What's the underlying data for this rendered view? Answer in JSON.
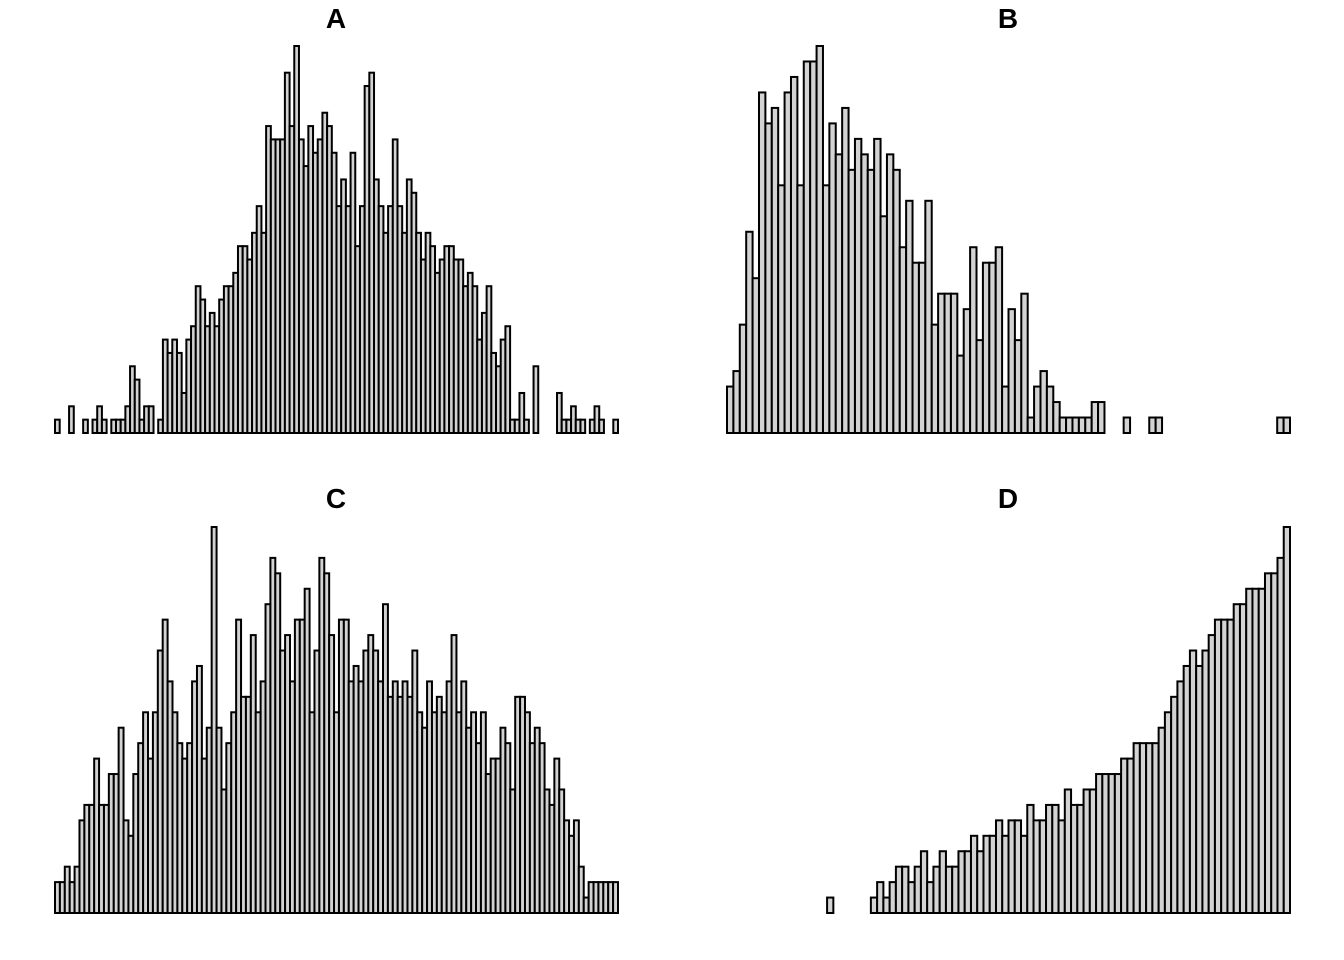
{
  "colors": {
    "bar_fill": "#d3d3d3",
    "bar_stroke": "#000000",
    "background": "#ffffff"
  },
  "chart_data": [
    {
      "type": "bar",
      "panel": "A",
      "title": "A",
      "xlabel": "",
      "ylabel": "",
      "axes": "none",
      "grid": false,
      "ylim": [
        0,
        29
      ],
      "values": [
        1,
        0,
        0,
        2,
        0,
        0,
        1,
        0,
        1,
        2,
        1,
        0,
        1,
        1,
        1,
        2,
        5,
        4,
        1,
        2,
        2,
        0,
        1,
        7,
        6,
        7,
        6,
        3,
        7,
        8,
        11,
        10,
        8,
        9,
        8,
        10,
        11,
        11,
        12,
        14,
        14,
        13,
        15,
        17,
        15,
        23,
        22,
        22,
        22,
        27,
        23,
        29,
        22,
        20,
        23,
        21,
        22,
        24,
        23,
        21,
        17,
        19,
        17,
        21,
        14,
        17,
        26,
        27,
        19,
        17,
        15,
        17,
        22,
        17,
        15,
        19,
        18,
        15,
        13,
        15,
        14,
        12,
        13,
        14,
        14,
        13,
        13,
        11,
        12,
        11,
        7,
        9,
        11,
        6,
        5,
        7,
        8,
        1,
        1,
        3,
        1,
        0,
        5,
        0,
        0,
        0,
        0,
        3,
        1,
        1,
        2,
        1,
        1,
        0,
        1,
        2,
        1,
        0,
        0,
        1
      ]
    },
    {
      "type": "bar",
      "panel": "B",
      "title": "B",
      "xlabel": "",
      "ylabel": "",
      "axes": "none",
      "grid": false,
      "ylim": [
        0,
        25
      ],
      "values": [
        3,
        4,
        7,
        13,
        10,
        22,
        20,
        21,
        16,
        22,
        23,
        16,
        24,
        24,
        25,
        16,
        20,
        18,
        21,
        17,
        19,
        18,
        17,
        19,
        14,
        18,
        17,
        12,
        15,
        11,
        11,
        15,
        7,
        9,
        9,
        9,
        5,
        8,
        12,
        6,
        11,
        11,
        12,
        3,
        8,
        6,
        9,
        1,
        3,
        4,
        3,
        2,
        1,
        1,
        1,
        1,
        1,
        2,
        2,
        0,
        0,
        0,
        1,
        0,
        0,
        0,
        1,
        1,
        0,
        0,
        0,
        0,
        0,
        0,
        0,
        0,
        0,
        0,
        0,
        0,
        0,
        0,
        0,
        0,
        0,
        0,
        1,
        1
      ]
    },
    {
      "type": "bar",
      "panel": "C",
      "title": "C",
      "xlabel": "",
      "ylabel": "",
      "axes": "none",
      "grid": false,
      "ylim": [
        0,
        25
      ],
      "values": [
        2,
        2,
        3,
        2,
        3,
        6,
        7,
        7,
        10,
        7,
        7,
        9,
        9,
        12,
        6,
        5,
        9,
        11,
        13,
        10,
        13,
        17,
        19,
        15,
        13,
        11,
        10,
        11,
        15,
        16,
        10,
        12,
        25,
        12,
        8,
        11,
        13,
        19,
        14,
        14,
        18,
        13,
        15,
        20,
        23,
        22,
        17,
        18,
        15,
        19,
        19,
        21,
        13,
        17,
        23,
        22,
        18,
        13,
        19,
        19,
        15,
        16,
        15,
        17,
        18,
        17,
        15,
        20,
        14,
        15,
        14,
        15,
        14,
        17,
        13,
        12,
        15,
        13,
        14,
        13,
        15,
        18,
        13,
        15,
        12,
        13,
        11,
        13,
        9,
        10,
        10,
        12,
        11,
        8,
        14,
        14,
        13,
        11,
        12,
        11,
        8,
        7,
        10,
        8,
        6,
        5,
        6,
        3,
        1,
        2,
        2,
        2,
        2,
        2,
        2
      ]
    },
    {
      "type": "bar",
      "panel": "D",
      "title": "D",
      "xlabel": "",
      "ylabel": "",
      "axes": "none",
      "grid": false,
      "ylim": [
        0,
        25
      ],
      "values": [
        0,
        0,
        0,
        0,
        0,
        0,
        0,
        0,
        0,
        0,
        0,
        0,
        0,
        0,
        0,
        0,
        1,
        0,
        0,
        0,
        0,
        0,
        0,
        1,
        2,
        1,
        2,
        3,
        3,
        2,
        3,
        4,
        2,
        3,
        4,
        3,
        3,
        4,
        4,
        5,
        4,
        5,
        5,
        6,
        5,
        6,
        6,
        5,
        7,
        6,
        6,
        7,
        7,
        6,
        8,
        7,
        7,
        8,
        8,
        9,
        9,
        9,
        9,
        10,
        10,
        11,
        11,
        11,
        11,
        12,
        13,
        14,
        15,
        16,
        17,
        16,
        17,
        18,
        19,
        19,
        19,
        20,
        20,
        21,
        21,
        21,
        22,
        22,
        23,
        25
      ]
    }
  ]
}
